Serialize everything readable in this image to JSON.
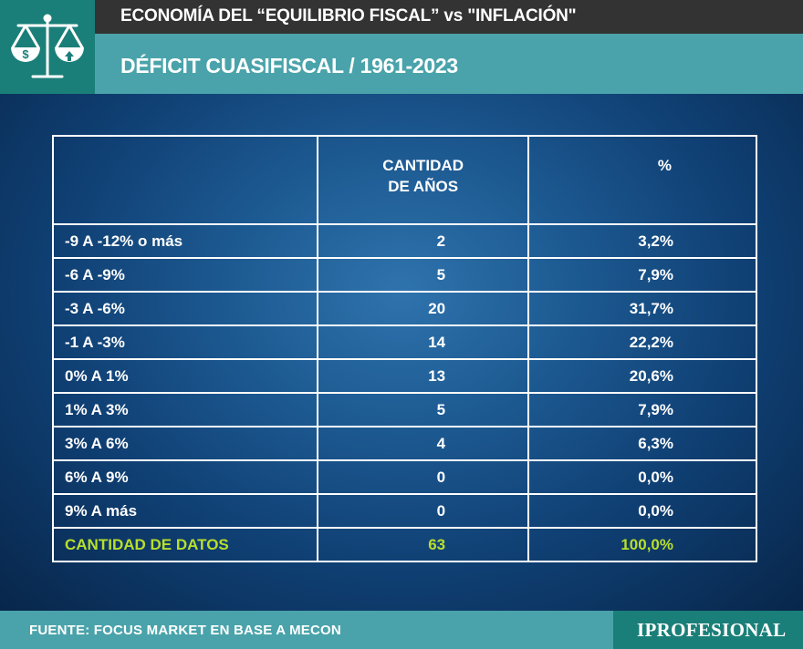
{
  "header": {
    "title": "ECONOMÍA DEL “EQUILIBRIO FISCAL” vs \"INFLACIÓN\"",
    "subtitle": "DÉFICIT CUASIFISCAL / 1961-2023",
    "icon": "balance-scale-icon"
  },
  "chart_data": {
    "type": "table",
    "columns": [
      "",
      "CANTIDAD DE AÑOS",
      "%"
    ],
    "rows": [
      {
        "range": "-9 A -12% o más",
        "years": "2",
        "percent": "3,2%"
      },
      {
        "range": "-6 A -9%",
        "years": "5",
        "percent": "7,9%"
      },
      {
        "range": "-3 A -6%",
        "years": "20",
        "percent": "31,7%"
      },
      {
        "range": "-1 A -3%",
        "years": "14",
        "percent": "22,2%"
      },
      {
        "range": "0% A 1%",
        "years": "13",
        "percent": "20,6%"
      },
      {
        "range": "1% A 3%",
        "years": "5",
        "percent": "7,9%"
      },
      {
        "range": "3% A 6%",
        "years": "4",
        "percent": "6,3%"
      },
      {
        "range": "6% A 9%",
        "years": "0",
        "percent": "0,0%"
      },
      {
        "range": "9% A más",
        "years": "0",
        "percent": "0,0%"
      }
    ],
    "total": {
      "range": "CANTIDAD DE DATOS",
      "years": "63",
      "percent": "100,0%"
    }
  },
  "footer": {
    "source": "FUENTE: FOCUS MARKET EN BASE A MECON",
    "brand": "IPROFESIONAL"
  },
  "colors": {
    "header_dark": "#333333",
    "header_teal": "#4aa3aa",
    "logo_teal": "#1a7f78",
    "total_green": "#b9df2b",
    "background_blue": "#0f3f73"
  }
}
